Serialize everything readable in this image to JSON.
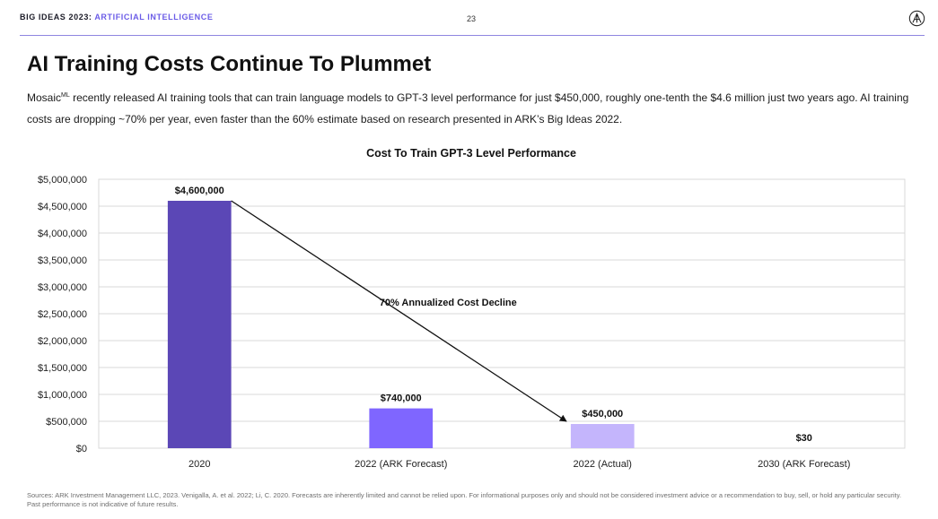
{
  "header": {
    "brand": "BIG IDEAS 2023:",
    "section": "ARTIFICIAL INTELLIGENCE",
    "page_number": "23",
    "logo_icon": "ark-logo-icon"
  },
  "title": "AI Training Costs Continue To Plummet",
  "description": {
    "prefix": "Mosaic",
    "superscript": "ML",
    "text": " recently released AI training tools that can train language models to GPT-3 level performance for just $450,000, roughly one-tenth the $4.6 million just two years ago. AI training costs are dropping ~70% per year, even faster than the 60% estimate based on research presented in ARK’s Big Ideas 2022."
  },
  "chart_data": {
    "type": "bar",
    "title": "Cost To Train GPT-3 Level Performance",
    "categories": [
      "2020",
      "2022 (ARK Forecast)",
      "2022 (Actual)",
      "2030 (ARK Forecast)"
    ],
    "values": [
      4600000,
      740000,
      450000,
      30
    ],
    "data_labels": [
      "$4,600,000",
      "$740,000",
      "$450,000",
      "$30"
    ],
    "bar_colors": [
      "#5b47b6",
      "#7f66ff",
      "#c4b5fc",
      "#c4b5fc"
    ],
    "ylim": [
      0,
      5000000
    ],
    "yticks": [
      0,
      500000,
      1000000,
      1500000,
      2000000,
      2500000,
      3000000,
      3500000,
      4000000,
      4500000,
      5000000
    ],
    "ytick_labels": [
      "$0",
      "$500,000",
      "$1,000,000",
      "$1,500,000",
      "$2,000,000",
      "$2,500,000",
      "$3,000,000",
      "$3,500,000",
      "$4,000,000",
      "$4,500,000",
      "$5,000,000"
    ],
    "xlabel": "",
    "ylabel": "",
    "grid": true,
    "annotation": {
      "text": "70% Annualized Cost Decline",
      "from_category": "2020",
      "from_value": 4600000,
      "to_category": "2022 (Actual)",
      "to_value": 450000
    }
  },
  "sources": "Sources: ARK Investment Management LLC, 2023. Venigalla, A. et al. 2022; Li, C. 2020. Forecasts are inherently limited and cannot be relied upon. For informational purposes only and should not be considered investment advice or a recommendation to buy, sell, or hold any particular security. Past performance is not indicative of future results."
}
